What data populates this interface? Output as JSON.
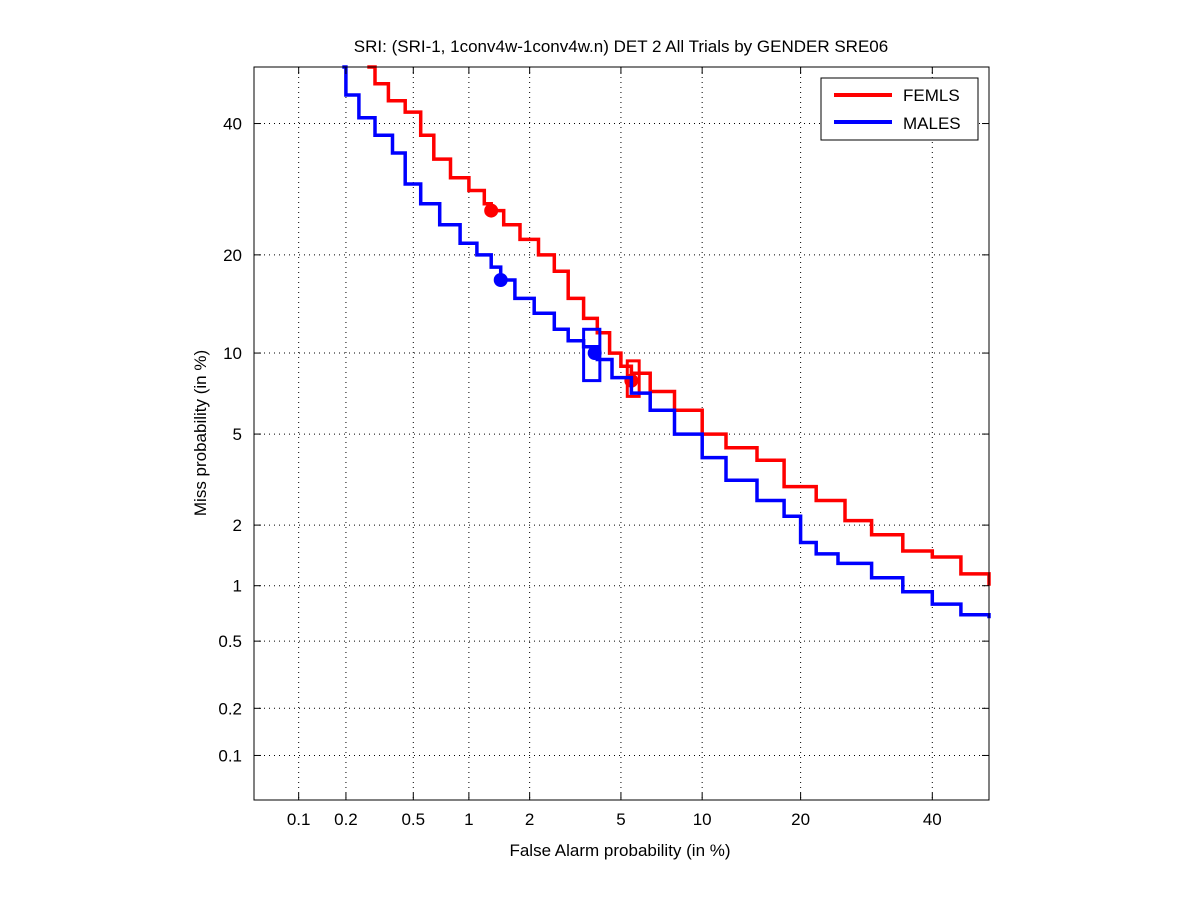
{
  "chart_data": {
    "type": "line",
    "title": "SRI: (SRI-1, 1conv4w-1conv4w.n) DET 2 All Trials by GENDER SRE06",
    "xlabel": "False Alarm probability (in %)",
    "ylabel": "Miss probability (in %)",
    "x_scale": "probit",
    "y_scale": "probit",
    "xlim": [
      0.05,
      50
    ],
    "ylim": [
      0.05,
      50
    ],
    "x_ticks": [
      {
        "value": 0.1,
        "label": "0.1"
      },
      {
        "value": 0.2,
        "label": "0.2"
      },
      {
        "value": 0.5,
        "label": "0.5"
      },
      {
        "value": 1,
        "label": "1"
      },
      {
        "value": 2,
        "label": "2"
      },
      {
        "value": 5,
        "label": "5"
      },
      {
        "value": 10,
        "label": "10"
      },
      {
        "value": 20,
        "label": "20"
      },
      {
        "value": 40,
        "label": "40"
      }
    ],
    "y_ticks": [
      {
        "value": 0.1,
        "label": "0.1"
      },
      {
        "value": 0.2,
        "label": "0.2"
      },
      {
        "value": 0.5,
        "label": "0.5"
      },
      {
        "value": 1,
        "label": "1"
      },
      {
        "value": 2,
        "label": "2"
      },
      {
        "value": 5,
        "label": "5"
      },
      {
        "value": 10,
        "label": "10"
      },
      {
        "value": 20,
        "label": "20"
      },
      {
        "value": 40,
        "label": "40"
      }
    ],
    "grid": true,
    "legend_position": "top-right",
    "series": [
      {
        "name": "FEMLS",
        "color": "#ff0000",
        "points": [
          [
            0.27,
            50
          ],
          [
            0.3,
            47
          ],
          [
            0.36,
            44
          ],
          [
            0.45,
            42
          ],
          [
            0.55,
            38
          ],
          [
            0.65,
            34
          ],
          [
            0.8,
            31
          ],
          [
            1.0,
            29
          ],
          [
            1.2,
            27
          ],
          [
            1.3,
            26
          ],
          [
            1.5,
            24
          ],
          [
            1.8,
            22
          ],
          [
            2.2,
            20
          ],
          [
            2.6,
            18
          ],
          [
            3.0,
            15
          ],
          [
            3.5,
            13
          ],
          [
            4.0,
            11.7
          ],
          [
            4.5,
            10
          ],
          [
            5.0,
            9.0
          ],
          [
            5.5,
            8.5
          ],
          [
            6.5,
            7.3
          ],
          [
            8.0,
            6.2
          ],
          [
            10,
            5.0
          ],
          [
            12,
            4.4
          ],
          [
            15,
            3.9
          ],
          [
            18,
            3.0
          ],
          [
            22,
            2.6
          ],
          [
            26,
            2.1
          ],
          [
            30,
            1.8
          ],
          [
            35,
            1.5
          ],
          [
            40,
            1.4
          ],
          [
            45,
            1.15
          ],
          [
            50,
            1.0
          ]
        ],
        "act_point": [
          1.3,
          26
        ],
        "min_point": [
          5.5,
          8.0
        ],
        "conf_box": {
          "x": [
            5.3,
            5.9
          ],
          "y": [
            7.0,
            9.4
          ]
        }
      },
      {
        "name": "MALES",
        "color": "#0000ff",
        "points": [
          [
            0.19,
            50
          ],
          [
            0.2,
            45
          ],
          [
            0.24,
            41
          ],
          [
            0.3,
            38
          ],
          [
            0.38,
            35
          ],
          [
            0.45,
            30
          ],
          [
            0.55,
            27
          ],
          [
            0.7,
            24
          ],
          [
            0.9,
            21.5
          ],
          [
            1.1,
            20
          ],
          [
            1.3,
            18.5
          ],
          [
            1.45,
            17
          ],
          [
            1.7,
            15
          ],
          [
            2.1,
            13.5
          ],
          [
            2.6,
            12
          ],
          [
            3.0,
            11
          ],
          [
            3.5,
            10.5
          ],
          [
            4.0,
            9.5
          ],
          [
            4.6,
            8.2
          ],
          [
            5.5,
            7.2
          ],
          [
            6.5,
            6.2
          ],
          [
            8.0,
            5.0
          ],
          [
            10,
            4.0
          ],
          [
            12,
            3.2
          ],
          [
            15,
            2.6
          ],
          [
            18,
            2.2
          ],
          [
            20,
            1.65
          ],
          [
            22,
            1.45
          ],
          [
            25,
            1.3
          ],
          [
            30,
            1.1
          ],
          [
            35,
            0.93
          ],
          [
            40,
            0.8
          ],
          [
            45,
            0.7
          ],
          [
            50,
            0.67
          ]
        ],
        "act_point": [
          1.45,
          17
        ],
        "min_point": [
          3.9,
          10
        ],
        "conf_box": {
          "x": [
            3.5,
            4.1
          ],
          "y": [
            8.0,
            12.0
          ]
        }
      }
    ]
  }
}
